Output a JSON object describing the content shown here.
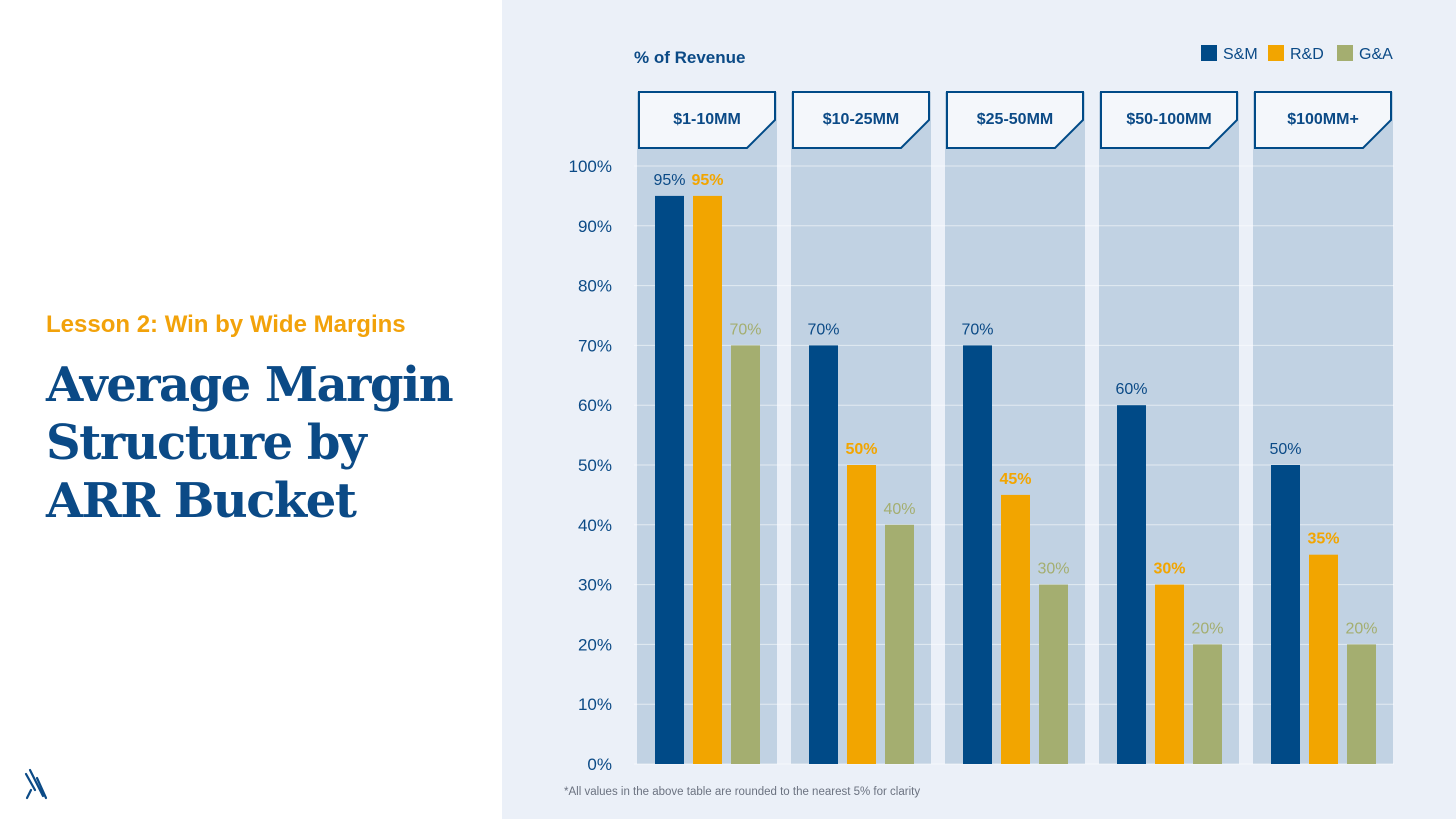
{
  "slide": {
    "lesson": "Lesson 2: Win by Wide Margins",
    "title": "Average Margin Structure by ARR Bucket"
  },
  "colors": {
    "sm": "#004a87",
    "rd": "#f2a500",
    "ga": "#a4ae70",
    "title": "#0b4a86",
    "lesson": "#f2a20a",
    "panel": "#ebf0f8",
    "column": "#c1d2e3"
  },
  "icons": {
    "logo": "diagonal-slash-logo-icon"
  },
  "chart_data": {
    "type": "bar",
    "ylabel": "% of Revenue",
    "ylim": [
      0,
      100
    ],
    "y_ticks": [
      "0%",
      "10%",
      "20%",
      "30%",
      "40%",
      "50%",
      "60%",
      "70%",
      "80%",
      "90%",
      "100%"
    ],
    "y_tick_values": [
      0,
      10,
      20,
      30,
      40,
      50,
      60,
      70,
      80,
      90,
      100
    ],
    "grid": true,
    "legend_position": "top-right",
    "categories": [
      "$1-10MM",
      "$10-25MM",
      "$25-50MM",
      "$50-100MM",
      "$100MM+"
    ],
    "series": [
      {
        "name": "S&M",
        "values": [
          95,
          70,
          70,
          60,
          50
        ],
        "labels": [
          "95%",
          "70%",
          "70%",
          "60%",
          "50%"
        ]
      },
      {
        "name": "R&D",
        "values": [
          95,
          50,
          45,
          30,
          35
        ],
        "labels": [
          "95%",
          "50%",
          "45%",
          "30%",
          "35%"
        ]
      },
      {
        "name": "G&A",
        "values": [
          70,
          40,
          30,
          20,
          20
        ],
        "labels": [
          "70%",
          "40%",
          "30%",
          "20%",
          "20%"
        ]
      }
    ],
    "footnote": "*All values in the above table are rounded to the nearest 5% for clarity"
  }
}
